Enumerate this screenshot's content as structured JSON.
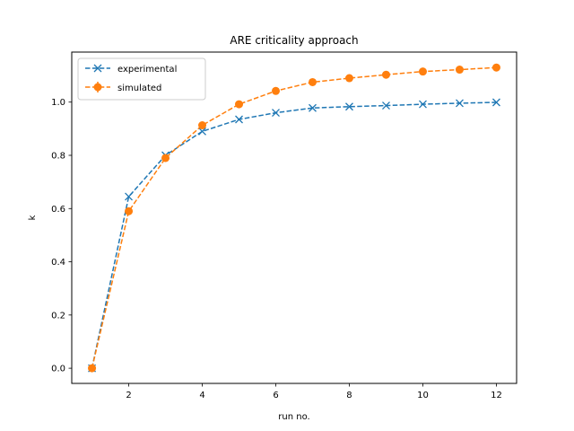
{
  "chart_data": {
    "type": "line",
    "title": "ARE criticality approach",
    "xlabel": "run no.",
    "ylabel": "k",
    "x": [
      1,
      2,
      3,
      4,
      5,
      6,
      7,
      8,
      9,
      10,
      11,
      12
    ],
    "xlim": [
      0.45,
      12.55
    ],
    "ylim": [
      -0.057,
      1.188
    ],
    "xticks": [
      2,
      4,
      6,
      8,
      10,
      12
    ],
    "yticks": [
      "0.0",
      "0.2",
      "0.4",
      "0.6",
      "0.8",
      "1.0"
    ],
    "grid": false,
    "legend_position": "top-left",
    "series": [
      {
        "name": "experimental",
        "values": [
          0.0,
          0.645,
          0.8,
          0.89,
          0.935,
          0.96,
          0.978,
          0.983,
          0.987,
          0.992,
          0.996,
          0.999
        ],
        "color": "#1f77b4",
        "marker": "x",
        "linestyle": "dashed"
      },
      {
        "name": "simulated",
        "values": [
          0.0,
          0.59,
          0.79,
          0.913,
          0.992,
          1.042,
          1.075,
          1.09,
          1.103,
          1.115,
          1.122,
          1.13
        ],
        "color": "#ff7f0e",
        "marker": "o",
        "linestyle": "dashed",
        "error_bars": true
      }
    ]
  }
}
